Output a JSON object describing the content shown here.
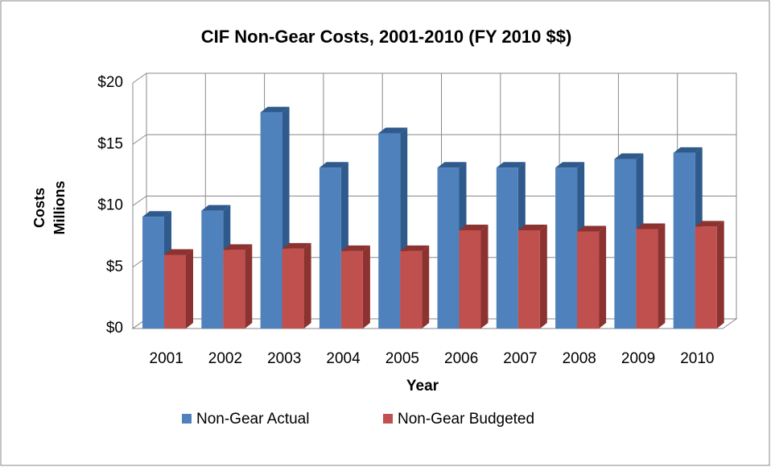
{
  "chart_data": {
    "type": "bar3d",
    "title": "CIF Non-Gear Costs, 2001-2010 (FY 2010 $$)",
    "y_label": "Costs",
    "y_unit_label": "Millions",
    "x_label": "Year",
    "categories": [
      "2001",
      "2002",
      "2003",
      "2004",
      "2005",
      "2006",
      "2007",
      "2008",
      "2009",
      "2010"
    ],
    "series": [
      {
        "name": "Non-Gear Actual",
        "color": "#4f81bd",
        "side": "#2f5a8c",
        "values": [
          9.1,
          9.6,
          17.6,
          13.1,
          15.9,
          13.1,
          13.1,
          13.1,
          13.8,
          14.3
        ]
      },
      {
        "name": "Non-Gear Budgeted",
        "color": "#c0504d",
        "side": "#8c3230",
        "values": [
          6.0,
          6.4,
          6.5,
          6.3,
          6.3,
          8.0,
          8.0,
          7.9,
          8.1,
          8.3
        ]
      }
    ],
    "ylim": [
      0,
      20
    ],
    "yticks": [
      {
        "value": 0,
        "label": "$0"
      },
      {
        "value": 5,
        "label": "$5"
      },
      {
        "value": 10,
        "label": "$10"
      },
      {
        "value": 15,
        "label": "$15"
      },
      {
        "value": 20,
        "label": "$20"
      }
    ],
    "grid": true,
    "legend": "bottom"
  }
}
